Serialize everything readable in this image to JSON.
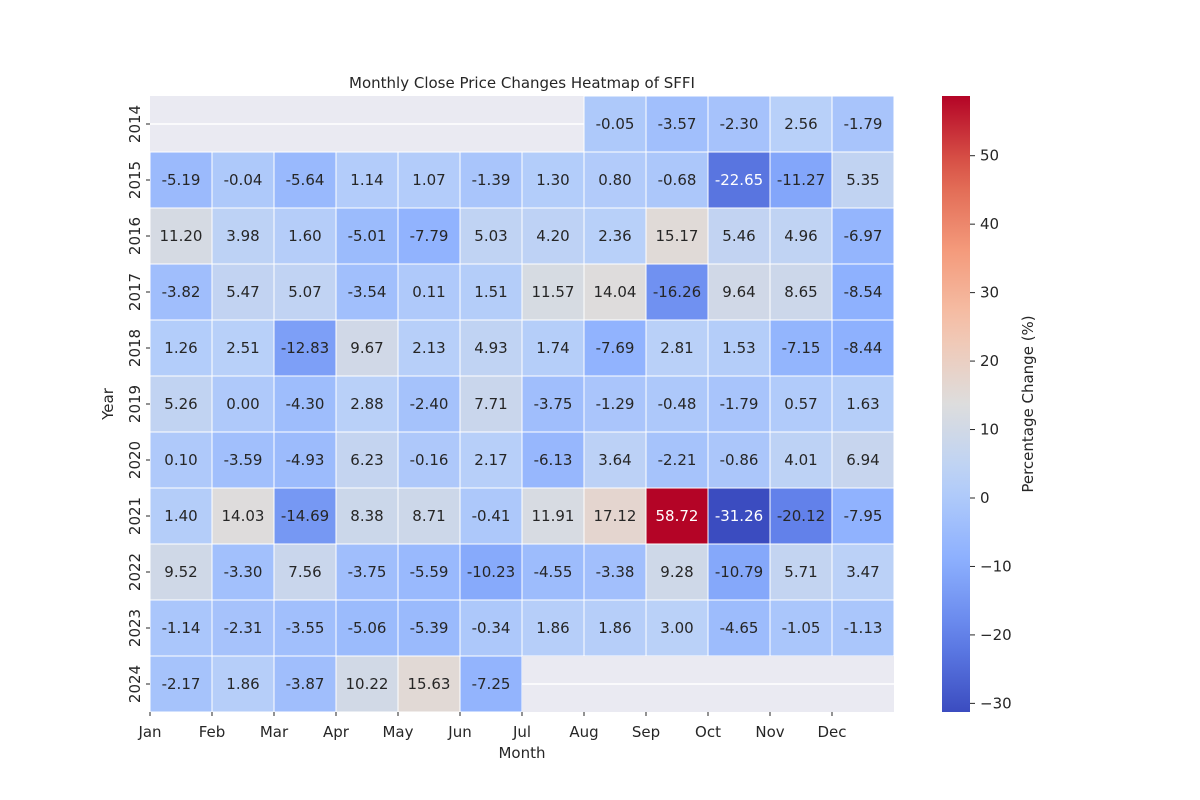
{
  "chart_data": {
    "type": "heatmap",
    "title": "Monthly Close Price Changes Heatmap of SFFI",
    "xlabel": "Month",
    "ylabel": "Year",
    "colorbar_label": "Percentage Change (%)",
    "colormap": "coolwarm",
    "vmin": -31.26,
    "vmax": 58.72,
    "colorbar_ticks": [
      -30,
      -20,
      -10,
      0,
      10,
      20,
      30,
      40,
      50
    ],
    "colorbar_tick_labels": [
      "−30",
      "−20",
      "−10",
      "0",
      "10",
      "20",
      "30",
      "40",
      "50"
    ],
    "x_categories": [
      "Jan",
      "Feb",
      "Mar",
      "Apr",
      "May",
      "Jun",
      "Jul",
      "Aug",
      "Sep",
      "Oct",
      "Nov",
      "Dec"
    ],
    "y_categories": [
      "2014",
      "2015",
      "2016",
      "2017",
      "2018",
      "2019",
      "2020",
      "2021",
      "2022",
      "2023",
      "2024"
    ],
    "values": [
      [
        null,
        null,
        null,
        null,
        null,
        null,
        null,
        -0.05,
        -3.57,
        -2.3,
        2.56,
        -1.79
      ],
      [
        -5.19,
        -0.04,
        -5.64,
        1.14,
        1.07,
        -1.39,
        1.3,
        0.8,
        -0.68,
        -22.65,
        -11.27,
        5.35
      ],
      [
        11.2,
        3.98,
        1.6,
        -5.01,
        -7.79,
        5.03,
        4.2,
        2.36,
        15.17,
        5.46,
        4.96,
        -6.97
      ],
      [
        -3.82,
        5.47,
        5.07,
        -3.54,
        0.11,
        1.51,
        11.57,
        14.04,
        -16.26,
        9.64,
        8.65,
        -8.54
      ],
      [
        1.26,
        2.51,
        -12.83,
        9.67,
        2.13,
        4.93,
        1.74,
        -7.69,
        2.81,
        1.53,
        -7.15,
        -8.44
      ],
      [
        5.26,
        0.0,
        -4.3,
        2.88,
        -2.4,
        7.71,
        -3.75,
        -1.29,
        -0.48,
        -1.79,
        0.57,
        1.63
      ],
      [
        0.1,
        -3.59,
        -4.93,
        6.23,
        -0.16,
        2.17,
        -6.13,
        3.64,
        -2.21,
        -0.86,
        4.01,
        6.94
      ],
      [
        1.4,
        14.03,
        -14.69,
        8.38,
        8.71,
        -0.41,
        11.91,
        17.12,
        58.72,
        -31.26,
        -20.12,
        -7.95
      ],
      [
        9.52,
        -3.3,
        7.56,
        -3.75,
        -5.59,
        -10.23,
        -4.55,
        -3.38,
        9.28,
        -10.79,
        5.71,
        3.47
      ],
      [
        -1.14,
        -2.31,
        -3.55,
        -5.06,
        -5.39,
        -0.34,
        1.86,
        1.86,
        3.0,
        -4.65,
        -1.05,
        -1.13
      ],
      [
        -2.17,
        1.86,
        -3.87,
        10.22,
        15.63,
        -7.25,
        null,
        null,
        null,
        null,
        null,
        null
      ]
    ],
    "grid": true,
    "missing_color": "#eaeaf2"
  }
}
